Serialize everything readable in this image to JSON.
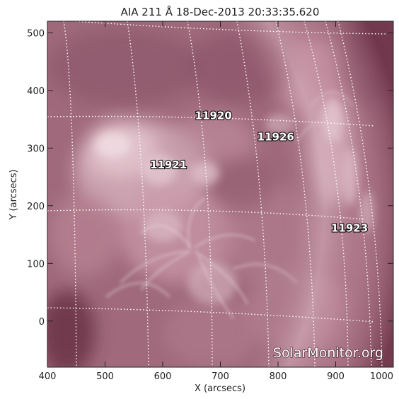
{
  "title": "AIA 211 Å 18-Dec-2013 20:33:35.620",
  "x_axis": {
    "label": "X (arcsecs)",
    "range": [
      400,
      1000
    ],
    "ticks": [
      "400",
      "500",
      "600",
      "700",
      "800",
      "900",
      "1000"
    ]
  },
  "y_axis": {
    "label": "Y (arcsecs)",
    "range": [
      -80,
      520
    ],
    "ticks": [
      "0",
      "100",
      "200",
      "300",
      "400",
      "500"
    ]
  },
  "active_regions": [
    {
      "id": "11920",
      "x": 688,
      "y": 350
    },
    {
      "id": "11926",
      "x": 796,
      "y": 313
    },
    {
      "id": "11921",
      "x": 610,
      "y": 265
    },
    {
      "id": "11923",
      "x": 924,
      "y": 155
    }
  ],
  "watermark": "SolarMonitor.org",
  "colors": {
    "background": "#ffffff",
    "image_base": "#a06a7c",
    "image_bright": "#ead2d9",
    "image_dark": "#5c2a3c",
    "grid": "#ffffff"
  }
}
